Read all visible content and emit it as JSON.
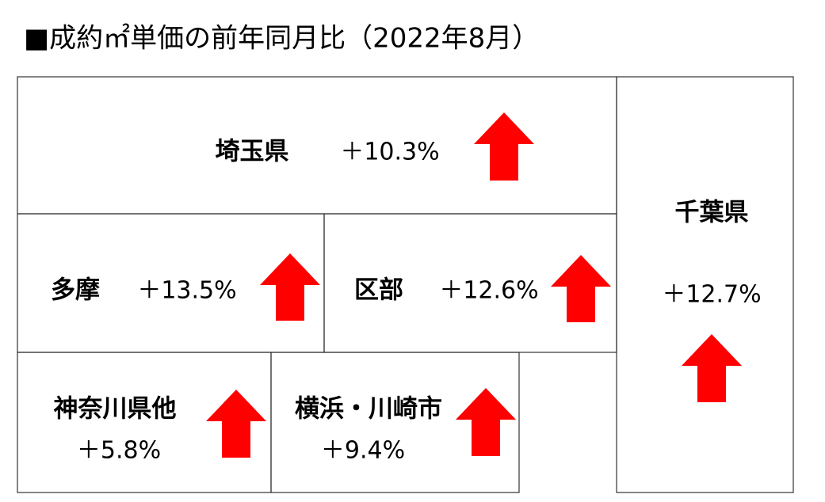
{
  "title": "■成約㎡単価の前年同月比（2022年8月）",
  "regions": [
    {
      "name": "埼玉県",
      "change": "＋10.3%"
    },
    {
      "name": "千葉県",
      "change": "＋12.7%"
    },
    {
      "name": "多摩",
      "change": "＋13.5%"
    },
    {
      "name": "区部",
      "change": "＋12.6%"
    },
    {
      "name": "神奈川県他",
      "change": "＋5.8%"
    },
    {
      "name": "横浜・川崎市",
      "change": "＋9.4%"
    }
  ]
}
